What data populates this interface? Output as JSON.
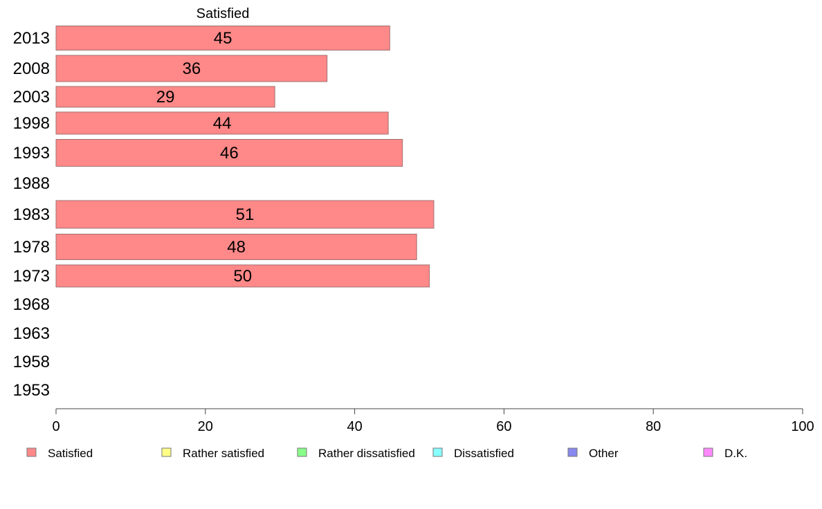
{
  "chart_data": {
    "type": "bar",
    "orientation": "horizontal",
    "series_header": "Satisfied",
    "categories": [
      "2013",
      "2008",
      "2003",
      "1998",
      "1993",
      "1988",
      "1983",
      "1978",
      "1973",
      "1968",
      "1963",
      "1958",
      "1953"
    ],
    "series": [
      {
        "name": "Satisfied",
        "color": "#ff8888",
        "values": [
          45,
          36,
          29,
          44,
          46,
          null,
          51,
          48,
          50,
          null,
          null,
          null,
          null
        ],
        "plotted": [
          44.7,
          36.3,
          29.3,
          44.5,
          46.4,
          null,
          50.6,
          48.3,
          50.0,
          null,
          null,
          null,
          null
        ]
      }
    ],
    "xlim": [
      0,
      100
    ],
    "xticks": [
      "0",
      "20",
      "40",
      "60",
      "80",
      "100"
    ],
    "legend": {
      "placement": "bottom",
      "items": [
        {
          "label": "Satisfied",
          "color": "#ff8888"
        },
        {
          "label": "Rather satisfied",
          "color": "#ffff88"
        },
        {
          "label": "Rather dissatisfied",
          "color": "#88ff88"
        },
        {
          "label": "Dissatisfied",
          "color": "#88ffff"
        },
        {
          "label": "Other",
          "color": "#8888ee"
        },
        {
          "label": "D.K.",
          "color": "#ff88ff"
        }
      ]
    },
    "grid": false
  }
}
